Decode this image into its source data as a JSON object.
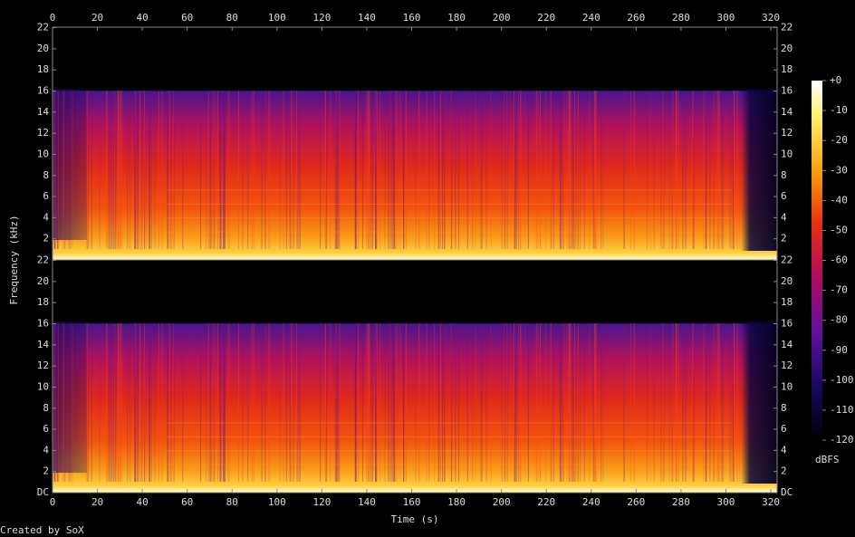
{
  "chart_data": {
    "type": "spectrogram",
    "x_label": "Time (s)",
    "y_label": "Frequency (kHz)",
    "footer": "Created by SoX",
    "xlim": [
      0,
      322.8
    ],
    "xticks": [
      0,
      20,
      40,
      60,
      80,
      100,
      120,
      140,
      160,
      180,
      200,
      220,
      240,
      260,
      280,
      300,
      320
    ],
    "ylim": [
      0,
      22.05
    ],
    "yticks": [
      {
        "value": 0,
        "label": "DC"
      },
      2,
      4,
      6,
      8,
      10,
      12,
      14,
      16,
      18,
      20,
      22
    ],
    "colorbar": {
      "label": "dBFS",
      "zlim": [
        -120,
        0
      ],
      "ticks": [
        {
          "value": 0,
          "label": "+0"
        },
        -10,
        -20,
        -30,
        -40,
        -50,
        -60,
        -70,
        -80,
        -90,
        -100,
        -110,
        -120
      ]
    }
  }
}
